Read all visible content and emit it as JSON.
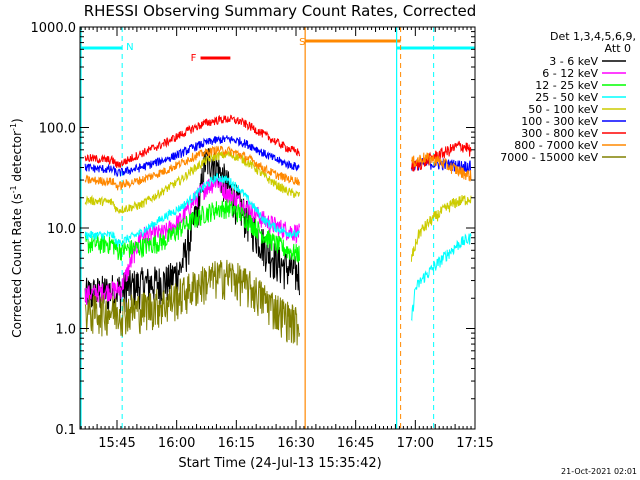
{
  "chart_data": {
    "type": "line",
    "title": "RHESSI Observing Summary Count Rates, Corrected",
    "xlabel": "Start Time (24-Jul-13 15:35:42)",
    "ylabel_main": "Corrected Count Rate (s",
    "ylabel_sup1": "-1",
    "ylabel_mid": " detector",
    "ylabel_sup2": "-1",
    "ylabel_end": ")",
    "y_scale": "log",
    "ylim": [
      0.1,
      1000
    ],
    "xlim_min": [
      935.7,
      1035
    ],
    "x_ticks": [
      {
        "value": 945,
        "label": "15:45"
      },
      {
        "value": 960,
        "label": "16:00"
      },
      {
        "value": 975,
        "label": "16:15"
      },
      {
        "value": 990,
        "label": "16:30"
      },
      {
        "value": 1005,
        "label": "16:45"
      },
      {
        "value": 1020,
        "label": "17:00"
      },
      {
        "value": 1035,
        "label": "17:15"
      }
    ],
    "y_ticks": [
      {
        "value": 1000,
        "label": "1000.0"
      },
      {
        "value": 100,
        "label": "100.0"
      },
      {
        "value": 10,
        "label": "10.0"
      },
      {
        "value": 1,
        "label": "1.0"
      },
      {
        "value": 0.1,
        "label": "0.1"
      }
    ],
    "legend_header_1": "Det 1,3,4,5,6,9,",
    "legend_header_2": "Att 0",
    "legend_position": "right",
    "series": [
      {
        "name": "3 - 6 keV",
        "color": "#000000",
        "segA": [
          [
            937,
            2.2
          ],
          [
            946,
            2.5
          ],
          [
            951,
            2.8
          ],
          [
            958,
            3
          ],
          [
            961,
            4
          ],
          [
            964,
            10
          ],
          [
            966,
            22
          ],
          [
            967,
            45
          ],
          [
            969,
            50
          ],
          [
            971,
            35
          ],
          [
            974,
            22
          ],
          [
            977,
            14
          ],
          [
            980,
            9
          ],
          [
            983,
            6
          ],
          [
            986,
            4.5
          ],
          [
            989,
            3.8
          ],
          [
            991,
            3.5
          ]
        ],
        "segB": []
      },
      {
        "name": "6 - 12 keV",
        "color": "#ff00ff",
        "segA": [
          [
            937,
            2.2
          ],
          [
            946,
            2.5
          ],
          [
            951,
            8.5
          ],
          [
            957,
            9
          ],
          [
            961,
            12
          ],
          [
            964,
            18
          ],
          [
            967,
            25
          ],
          [
            970,
            30
          ],
          [
            973,
            22
          ],
          [
            976,
            18
          ],
          [
            979,
            15
          ],
          [
            982,
            12
          ],
          [
            985,
            10.5
          ],
          [
            988,
            9.5
          ],
          [
            991,
            9
          ]
        ],
        "segB": []
      },
      {
        "name": "12 - 25 keV",
        "color": "#00ff00",
        "segA": [
          [
            937,
            7
          ],
          [
            944,
            7
          ],
          [
            945,
            6
          ],
          [
            951,
            6.5
          ],
          [
            957,
            7.5
          ],
          [
            961,
            10
          ],
          [
            964,
            12
          ],
          [
            967,
            14
          ],
          [
            970,
            15.5
          ],
          [
            973,
            16
          ],
          [
            976,
            14
          ],
          [
            979,
            11
          ],
          [
            982,
            8.5
          ],
          [
            985,
            7
          ],
          [
            988,
            6
          ],
          [
            991,
            5.5
          ]
        ],
        "segB": []
      },
      {
        "name": "25 - 50 keV",
        "color": "#00ffff",
        "segA": [
          [
            937,
            8.5
          ],
          [
            944,
            8.5
          ],
          [
            945,
            7
          ],
          [
            951,
            9
          ],
          [
            957,
            13
          ],
          [
            961,
            16
          ],
          [
            964,
            20
          ],
          [
            967,
            26
          ],
          [
            970,
            32
          ],
          [
            973,
            30
          ],
          [
            976,
            24
          ],
          [
            979,
            17
          ],
          [
            982,
            12
          ],
          [
            985,
            10
          ],
          [
            988,
            9
          ],
          [
            991,
            8.5
          ]
        ],
        "segB": [
          [
            1019,
            1.2
          ],
          [
            1020,
            2.5
          ],
          [
            1022,
            3.2
          ],
          [
            1025,
            4.2
          ],
          [
            1028,
            5.5
          ],
          [
            1031,
            7
          ],
          [
            1034,
            8
          ]
        ]
      },
      {
        "name": "50 - 100 keV",
        "color": "#cccc00",
        "segA": [
          [
            937,
            19
          ],
          [
            944,
            18
          ],
          [
            945,
            15
          ],
          [
            951,
            17
          ],
          [
            957,
            24
          ],
          [
            961,
            30
          ],
          [
            964,
            38
          ],
          [
            967,
            46
          ],
          [
            970,
            52
          ],
          [
            973,
            54
          ],
          [
            976,
            50
          ],
          [
            979,
            42
          ],
          [
            982,
            33
          ],
          [
            985,
            27
          ],
          [
            988,
            23
          ],
          [
            991,
            21
          ]
        ],
        "segB": [
          [
            1019,
            5
          ],
          [
            1021,
            9
          ],
          [
            1024,
            12
          ],
          [
            1027,
            15
          ],
          [
            1030,
            18
          ],
          [
            1034,
            20
          ]
        ]
      },
      {
        "name": "100 - 300 keV",
        "color": "#0000ff",
        "segA": [
          [
            937,
            40
          ],
          [
            944,
            38
          ],
          [
            945,
            35
          ],
          [
            951,
            40
          ],
          [
            957,
            48
          ],
          [
            961,
            55
          ],
          [
            964,
            63
          ],
          [
            967,
            70
          ],
          [
            970,
            75
          ],
          [
            973,
            77
          ],
          [
            976,
            73
          ],
          [
            979,
            65
          ],
          [
            982,
            55
          ],
          [
            985,
            48
          ],
          [
            988,
            43
          ],
          [
            991,
            40
          ]
        ],
        "segB": [
          [
            1019,
            42
          ],
          [
            1022,
            44
          ],
          [
            1025,
            44
          ],
          [
            1028,
            43
          ],
          [
            1031,
            42
          ],
          [
            1034,
            41
          ]
        ]
      },
      {
        "name": "300 - 800 keV",
        "color": "#ff0000",
        "segA": [
          [
            937,
            50
          ],
          [
            944,
            47
          ],
          [
            945,
            42
          ],
          [
            951,
            55
          ],
          [
            957,
            70
          ],
          [
            961,
            85
          ],
          [
            964,
            98
          ],
          [
            967,
            110
          ],
          [
            970,
            118
          ],
          [
            973,
            122
          ],
          [
            976,
            115
          ],
          [
            979,
            100
          ],
          [
            982,
            85
          ],
          [
            985,
            72
          ],
          [
            988,
            62
          ],
          [
            991,
            56
          ]
        ],
        "segB": [
          [
            1019,
            40
          ],
          [
            1022,
            45
          ],
          [
            1025,
            52
          ],
          [
            1028,
            58
          ],
          [
            1031,
            66
          ],
          [
            1033,
            64
          ],
          [
            1034,
            56
          ]
        ]
      },
      {
        "name": "800 - 7000 keV",
        "color": "#ff8800",
        "segA": [
          [
            937,
            30
          ],
          [
            944,
            29
          ],
          [
            945,
            26
          ],
          [
            951,
            30
          ],
          [
            957,
            37
          ],
          [
            961,
            44
          ],
          [
            964,
            51
          ],
          [
            967,
            56
          ],
          [
            970,
            60
          ],
          [
            973,
            59
          ],
          [
            976,
            54
          ],
          [
            979,
            47
          ],
          [
            982,
            39
          ],
          [
            985,
            34
          ],
          [
            988,
            31
          ],
          [
            991,
            29
          ]
        ],
        "segB": [
          [
            1019,
            45
          ],
          [
            1022,
            50
          ],
          [
            1025,
            48
          ],
          [
            1028,
            42
          ],
          [
            1031,
            37
          ],
          [
            1034,
            33
          ]
        ]
      },
      {
        "name": "7000 - 15000 keV",
        "color": "#808000",
        "segA": [
          [
            937,
            1.5
          ],
          [
            946,
            1.5
          ],
          [
            951,
            1.6
          ],
          [
            957,
            1.8
          ],
          [
            961,
            2.2
          ],
          [
            964,
            2.6
          ],
          [
            967,
            3.0
          ],
          [
            970,
            3.3
          ],
          [
            973,
            3.5
          ],
          [
            976,
            3.0
          ],
          [
            979,
            2.5
          ],
          [
            982,
            2.0
          ],
          [
            985,
            1.6
          ],
          [
            988,
            1.3
          ],
          [
            991,
            1.1
          ]
        ],
        "segB": []
      }
    ],
    "flag_labels": {
      "N": "N",
      "F": "F",
      "S": "S"
    }
  },
  "footer": {
    "date": "21-Oct-2021 02:01"
  }
}
